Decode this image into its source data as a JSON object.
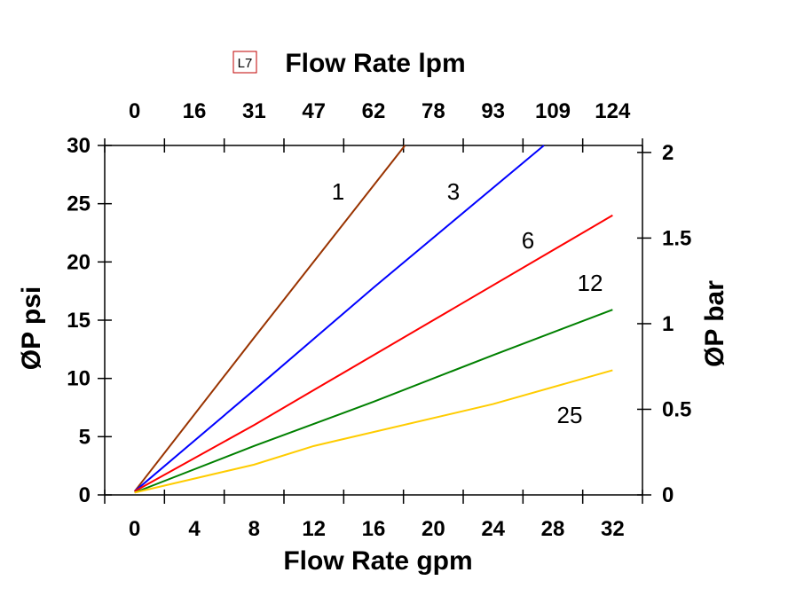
{
  "badge": "L7",
  "chart_data": {
    "type": "line",
    "xlabel": "Flow Rate gpm",
    "x2label": "Flow Rate lpm",
    "ylabel": "ØP psi",
    "y2label": "ØP bar",
    "xlim": [
      -2,
      34
    ],
    "ylim": [
      0,
      30
    ],
    "xticks": [
      "0",
      "4",
      "8",
      "12",
      "16",
      "20",
      "24",
      "28",
      "32"
    ],
    "x2ticks": [
      "0",
      "16",
      "31",
      "47",
      "62",
      "78",
      "93",
      "109",
      "124"
    ],
    "yticks": [
      "0",
      "5",
      "10",
      "15",
      "20",
      "25",
      "30"
    ],
    "y2ticks": [
      "0",
      "0.5",
      "1",
      "1.5",
      "2"
    ],
    "grid": false,
    "series": [
      {
        "name": "1",
        "color": "#993300",
        "x": [
          0,
          8,
          18.1
        ],
        "y": [
          0.3,
          13.5,
          30
        ]
      },
      {
        "name": "3",
        "color": "#0000ff",
        "x": [
          0,
          8,
          16,
          27.4
        ],
        "y": [
          0.3,
          9,
          17.8,
          30
        ]
      },
      {
        "name": "6",
        "color": "#ff0000",
        "x": [
          0,
          8,
          12,
          20,
          32
        ],
        "y": [
          0.3,
          6,
          9,
          15,
          24
        ]
      },
      {
        "name": "12",
        "color": "#008000",
        "x": [
          0,
          8,
          16,
          24,
          32
        ],
        "y": [
          0.2,
          4.2,
          8,
          12,
          15.9
        ]
      },
      {
        "name": "25",
        "color": "#ffcc00",
        "x": [
          0,
          8,
          12,
          24,
          32
        ],
        "y": [
          0.2,
          2.6,
          4.2,
          7.8,
          10.7
        ]
      }
    ]
  }
}
